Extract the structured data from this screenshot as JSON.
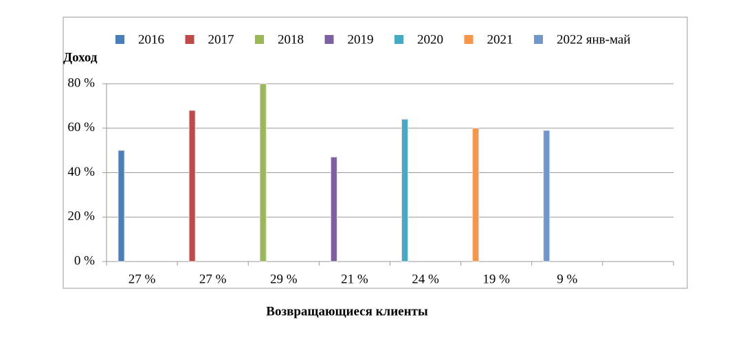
{
  "chart_data": {
    "type": "bar",
    "y_label": "Доход",
    "x_label": "Возвращающиеся клиенты",
    "categories": [
      "27 %",
      "27 %",
      "29 %",
      "21 %",
      "24 %",
      "19 %",
      "9 %",
      null
    ],
    "series": [
      {
        "name": "2016",
        "color": "#4a7ebb",
        "values": [
          50,
          null,
          null,
          null,
          null,
          null,
          null,
          null
        ]
      },
      {
        "name": "2017",
        "color": "#be4b48",
        "values": [
          null,
          68,
          null,
          null,
          null,
          null,
          null,
          null
        ]
      },
      {
        "name": "2018",
        "color": "#98b954",
        "values": [
          null,
          null,
          80,
          null,
          null,
          null,
          null,
          null
        ]
      },
      {
        "name": "2019",
        "color": "#7d60a0",
        "values": [
          null,
          null,
          null,
          47,
          null,
          null,
          null,
          null
        ]
      },
      {
        "name": "2020",
        "color": "#46aac5",
        "values": [
          null,
          null,
          null,
          null,
          64,
          null,
          null,
          null
        ]
      },
      {
        "name": "2021",
        "color": "#f79646",
        "values": [
          null,
          null,
          null,
          null,
          null,
          60,
          null,
          null
        ]
      },
      {
        "name": "2022 янв-май",
        "color": "#6f97cc",
        "values": [
          null,
          null,
          null,
          null,
          null,
          null,
          59,
          null
        ]
      }
    ],
    "ylim": [
      0,
      80
    ],
    "yticks": [
      {
        "value": 0,
        "label": "0 %"
      },
      {
        "value": 20,
        "label": "20 %"
      },
      {
        "value": 40,
        "label": "40 %"
      },
      {
        "value": 60,
        "label": "60 %"
      },
      {
        "value": 80,
        "label": "80 %"
      }
    ],
    "grid": true,
    "legend": "top"
  }
}
